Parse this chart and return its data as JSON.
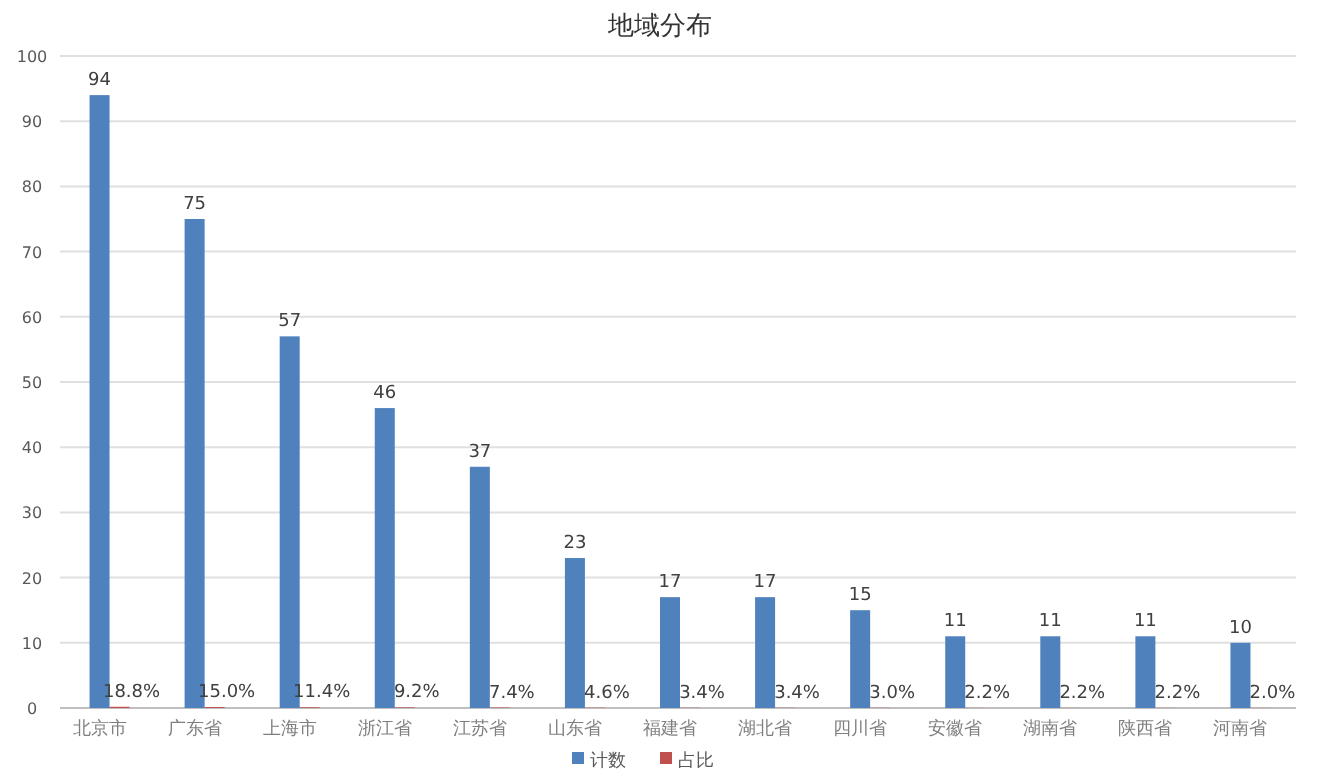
{
  "chart_data": {
    "type": "bar",
    "title": "地域分布",
    "categories": [
      "北京市",
      "广东省",
      "上海市",
      "浙江省",
      "江苏省",
      "山东省",
      "福建省",
      "湖北省",
      "四川省",
      "安徽省",
      "湖南省",
      "陕西省",
      "河南省"
    ],
    "series": [
      {
        "name": "计数",
        "color": "#4f81bd",
        "values": [
          94,
          75,
          57,
          46,
          37,
          23,
          17,
          17,
          15,
          11,
          11,
          11,
          10
        ],
        "value_labels": [
          "94",
          "75",
          "57",
          "46",
          "37",
          "23",
          "17",
          "17",
          "15",
          "11",
          "11",
          "11",
          "10"
        ]
      },
      {
        "name": "占比",
        "color": "#c0504d",
        "values": [
          0.188,
          0.15,
          0.114,
          0.092,
          0.074,
          0.046,
          0.034,
          0.034,
          0.03,
          0.022,
          0.022,
          0.022,
          0.02
        ],
        "value_labels": [
          "18.8%",
          "15.0%",
          "11.4%",
          "9.2%",
          "7.4%",
          "4.6%",
          "3.4%",
          "3.4%",
          "3.0%",
          "2.2%",
          "2.2%",
          "2.2%",
          "2.0%"
        ]
      }
    ],
    "ylim": [
      0,
      100
    ],
    "yticks": [
      0,
      10,
      20,
      30,
      40,
      50,
      60,
      70,
      80,
      90,
      100
    ],
    "grid": "y",
    "legend": "bottom"
  }
}
